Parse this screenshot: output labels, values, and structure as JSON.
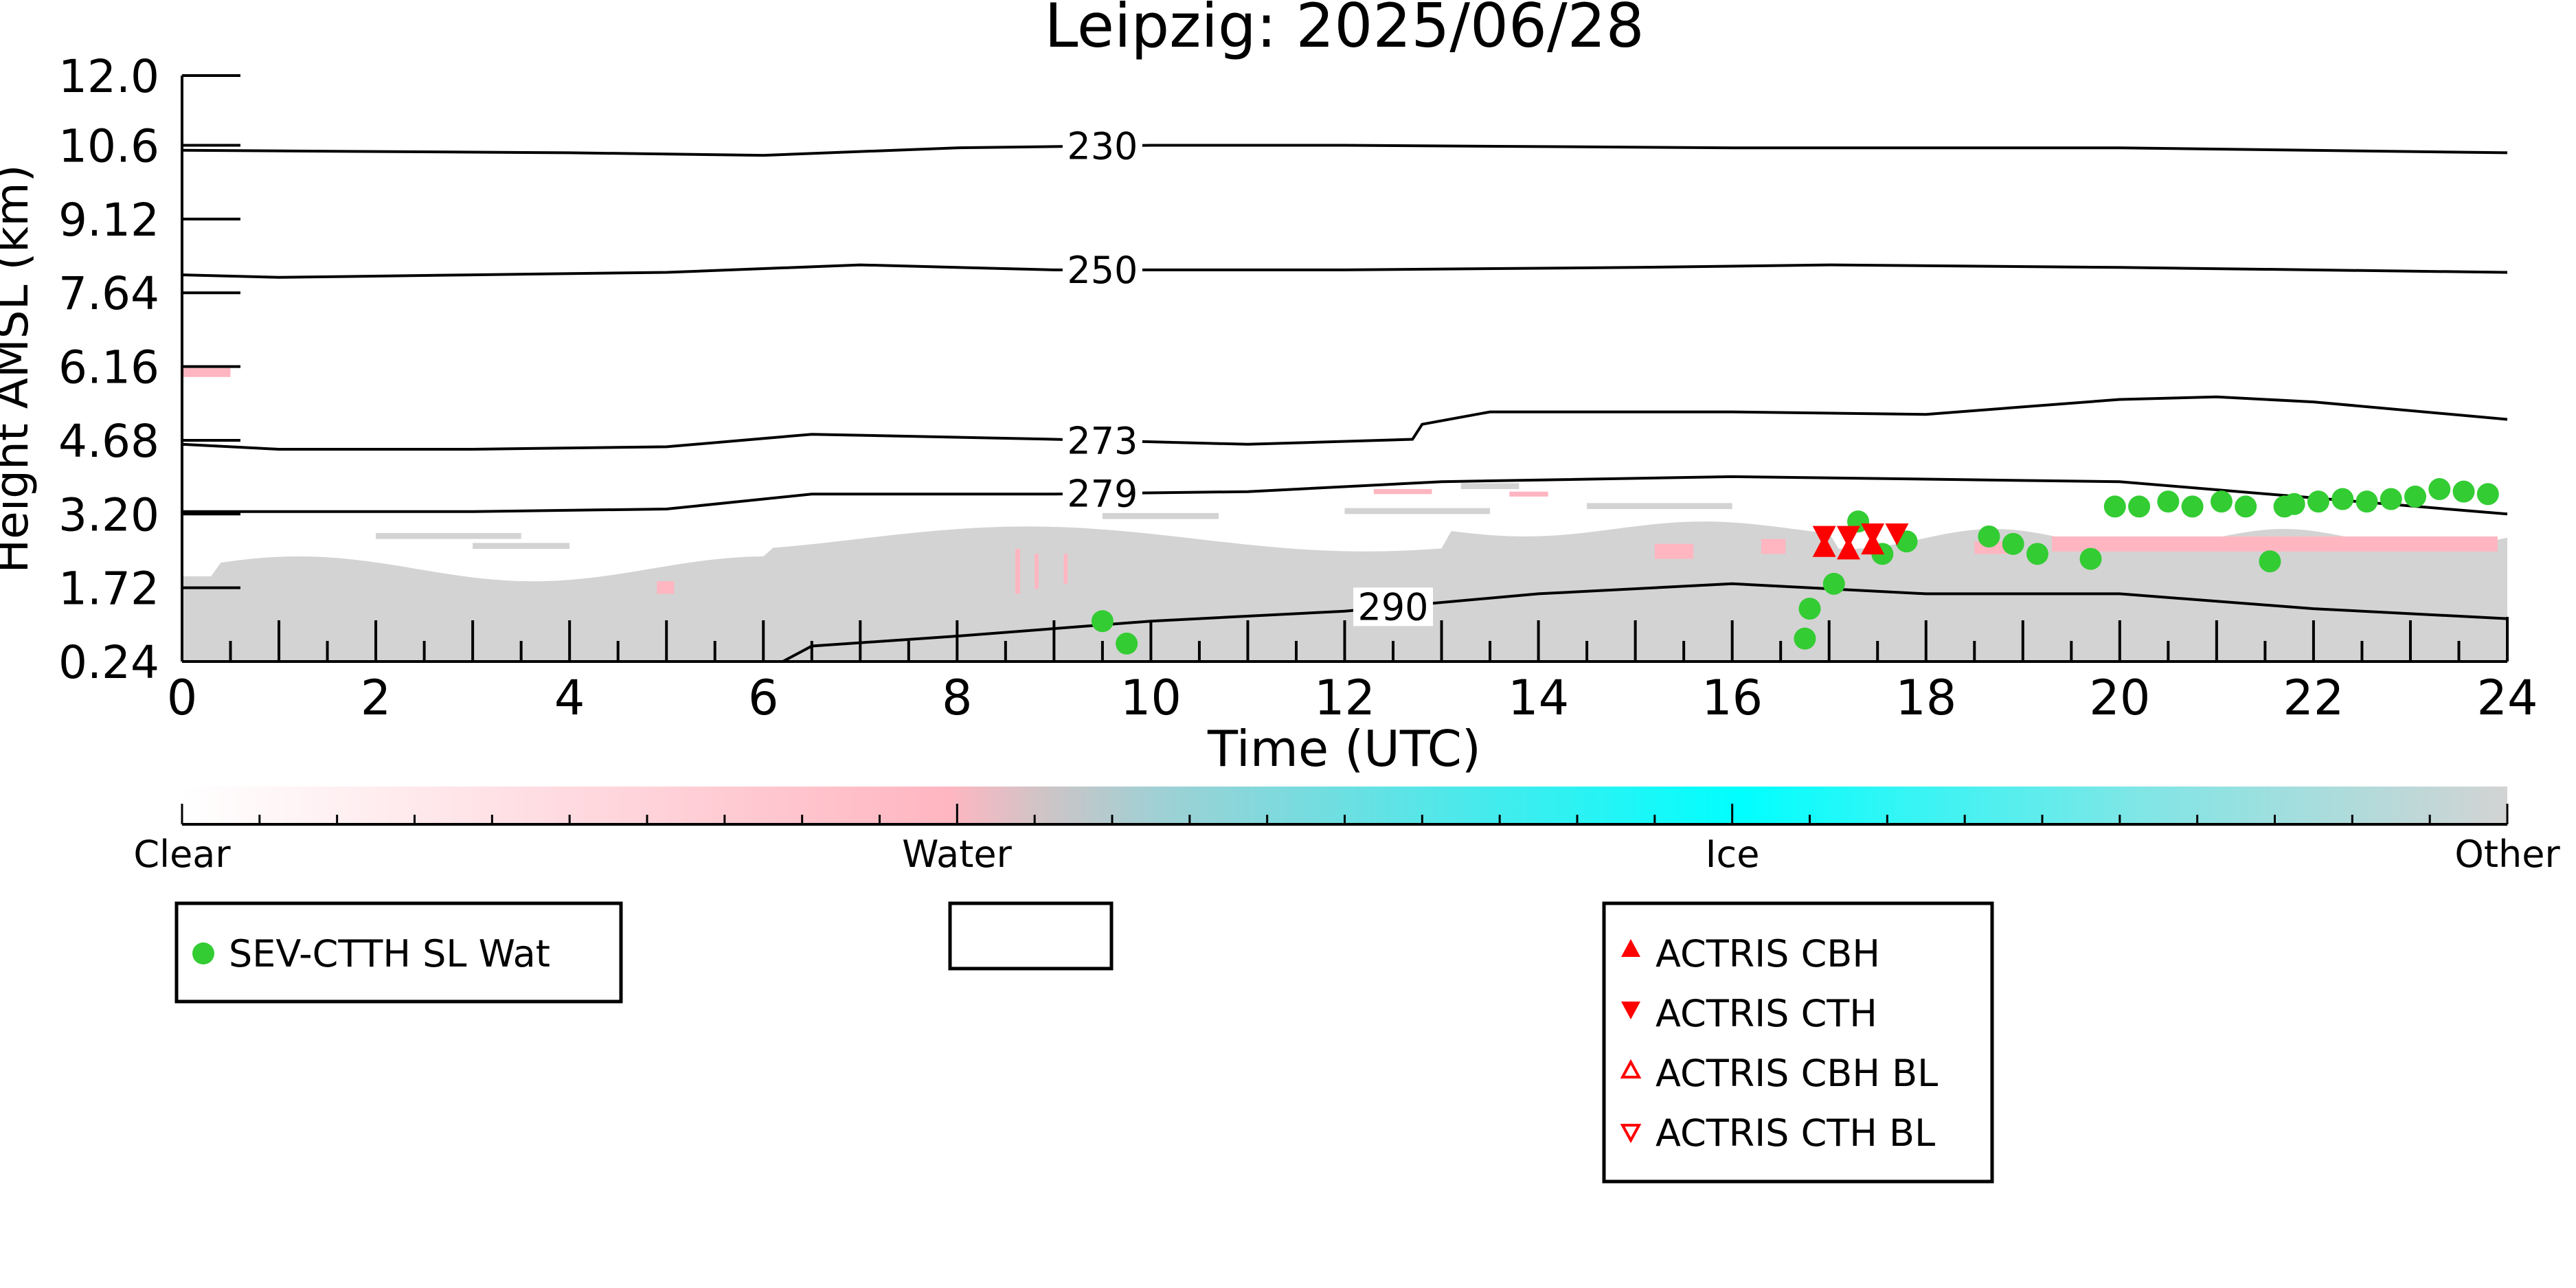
{
  "chart_data": {
    "type": "scatter",
    "title": "Leipzig: 2025/06/28",
    "xlabel": "Time (UTC)",
    "ylabel": "Height AMSL (km)",
    "xlim": [
      0,
      24
    ],
    "ylim": [
      0.24,
      12.0
    ],
    "x_ticks": [
      "0",
      "2",
      "4",
      "6",
      "8",
      "10",
      "12",
      "14",
      "16",
      "18",
      "20",
      "22",
      "24"
    ],
    "y_ticks": [
      "0.24",
      "1.72",
      "3.20",
      "4.68",
      "6.16",
      "7.64",
      "9.12",
      "10.6",
      "12.0"
    ],
    "grid": false,
    "colorbar": {
      "labels": [
        "Clear",
        "Water",
        "Ice",
        "Other"
      ],
      "colors": [
        "#ffffff",
        "#ffb6c1",
        "#00ffff",
        "#d3d3d3"
      ]
    },
    "colors": {
      "sev_water": "#33cc33",
      "actris": "#ff0000",
      "cloud_other": "#d3d3d3",
      "cloud_water": "#ffb6c1"
    },
    "legend": {
      "sev": [
        "SEV-CTTH SL Wat"
      ],
      "actris": [
        "ACTRIS CBH",
        "ACTRIS CTH",
        "ACTRIS CBH BL",
        "ACTRIS CTH BL"
      ]
    },
    "isotherms": [
      {
        "label": "230",
        "x": [
          0,
          4,
          6,
          8,
          10,
          12,
          16,
          20,
          24
        ],
        "y": [
          10.5,
          10.45,
          10.4,
          10.55,
          10.6,
          10.6,
          10.55,
          10.55,
          10.45
        ]
      },
      {
        "label": "250",
        "x": [
          0,
          1,
          3,
          5,
          7,
          9,
          12,
          15,
          17,
          20,
          24
        ],
        "y": [
          8.0,
          7.95,
          8.0,
          8.05,
          8.2,
          8.1,
          8.1,
          8.15,
          8.2,
          8.15,
          8.05
        ]
      },
      {
        "label": "273",
        "x": [
          0,
          1,
          3,
          5,
          6.5,
          9,
          11,
          12.7,
          12.8,
          13.5,
          16,
          18,
          20,
          21,
          22,
          24
        ],
        "y": [
          4.6,
          4.5,
          4.5,
          4.55,
          4.8,
          4.7,
          4.6,
          4.7,
          5.0,
          5.25,
          5.25,
          5.2,
          5.5,
          5.55,
          5.45,
          5.1
        ]
      },
      {
        "label": "279",
        "x": [
          0,
          3,
          5,
          6.5,
          9,
          11,
          13,
          16,
          20,
          24
        ],
        "y": [
          3.25,
          3.25,
          3.3,
          3.6,
          3.6,
          3.65,
          3.85,
          3.95,
          3.85,
          3.2
        ]
      },
      {
        "label": "290",
        "x": [
          6.2,
          6.5,
          8,
          10,
          12,
          14,
          16,
          18,
          20,
          22,
          24
        ],
        "y": [
          0.24,
          0.55,
          0.75,
          1.05,
          1.25,
          1.6,
          1.8,
          1.6,
          1.6,
          1.3,
          1.1
        ]
      }
    ],
    "series": [
      {
        "name": "SEV-CTTH SL Wat",
        "marker": "circle",
        "x": [
          9.5,
          9.75,
          16.75,
          16.8,
          17.05,
          17.3,
          17.55,
          17.8,
          18.65,
          18.9,
          19.15,
          19.7,
          19.95,
          20.2,
          20.5,
          20.75,
          21.05,
          21.3,
          21.55,
          21.7,
          21.8,
          22.05,
          22.3,
          22.55,
          22.8,
          23.05,
          23.3,
          23.55,
          23.8
        ],
        "y": [
          1.05,
          0.6,
          0.7,
          1.3,
          1.8,
          3.05,
          2.4,
          2.65,
          2.75,
          2.6,
          2.4,
          2.3,
          3.35,
          3.35,
          3.45,
          3.35,
          3.45,
          3.35,
          2.25,
          3.35,
          3.4,
          3.45,
          3.5,
          3.45,
          3.5,
          3.55,
          3.7,
          3.65,
          3.6
        ]
      },
      {
        "name": "ACTRIS CBH",
        "marker": "triangle-up",
        "x": [
          16.95,
          17.2,
          17.45
        ],
        "y": [
          2.45,
          2.4,
          2.5
        ]
      },
      {
        "name": "ACTRIS CTH",
        "marker": "triangle-down",
        "x": [
          16.95,
          17.2,
          17.45,
          17.7
        ],
        "y": [
          2.85,
          2.85,
          2.9,
          2.9
        ]
      }
    ]
  }
}
